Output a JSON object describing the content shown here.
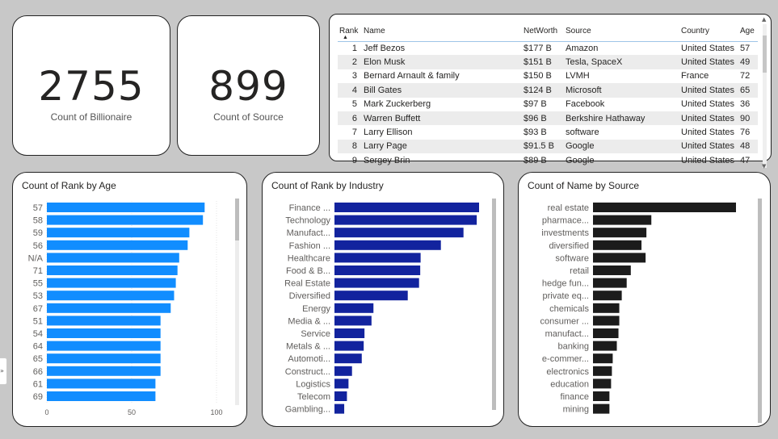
{
  "kpi1": {
    "value": "2755",
    "label": "Count of Billionaire"
  },
  "kpi2": {
    "value": "899",
    "label": "Count of Source"
  },
  "table": {
    "columns": [
      "Rank",
      "Name",
      "NetWorth",
      "Source",
      "Country",
      "Age"
    ],
    "rows": [
      [
        "1",
        "Jeff Bezos",
        "$177 B",
        "Amazon",
        "United States",
        "57"
      ],
      [
        "2",
        "Elon Musk",
        "$151 B",
        "Tesla, SpaceX",
        "United States",
        "49"
      ],
      [
        "3",
        "Bernard Arnault & family",
        "$150 B",
        "LVMH",
        "France",
        "72"
      ],
      [
        "4",
        "Bill Gates",
        "$124 B",
        "Microsoft",
        "United States",
        "65"
      ],
      [
        "5",
        "Mark Zuckerberg",
        "$97 B",
        "Facebook",
        "United States",
        "36"
      ],
      [
        "6",
        "Warren Buffett",
        "$96 B",
        "Berkshire Hathaway",
        "United States",
        "90"
      ],
      [
        "7",
        "Larry Ellison",
        "$93 B",
        "software",
        "United States",
        "76"
      ],
      [
        "8",
        "Larry Page",
        "$91.5 B",
        "Google",
        "United States",
        "48"
      ],
      [
        "9",
        "Sergey Brin",
        "$89 B",
        "Google",
        "United States",
        "47"
      ]
    ]
  },
  "chart_data": [
    {
      "type": "bar",
      "orientation": "horizontal",
      "title": "Count of Rank by Age",
      "categories": [
        "57",
        "58",
        "59",
        "56",
        "N/A",
        "71",
        "55",
        "53",
        "67",
        "51",
        "54",
        "64",
        "65",
        "66",
        "61",
        "69"
      ],
      "values": [
        93,
        92,
        84,
        83,
        78,
        77,
        76,
        75,
        73,
        67,
        67,
        67,
        67,
        67,
        64,
        64
      ],
      "xlim": [
        0,
        100
      ],
      "xticks": [
        "0",
        "50",
        "100"
      ],
      "color": "#118dff"
    },
    {
      "type": "bar",
      "orientation": "horizontal",
      "title": "Count of Rank by Industry",
      "categories": [
        "Finance ...",
        "Technology",
        "Manufact...",
        "Fashion ...",
        "Healthcare",
        "Food & B...",
        "Real Estate",
        "Diversified",
        "Energy",
        "Media & ...",
        "Service",
        "Metals & ...",
        "Automoti...",
        "Construct...",
        "Logistics",
        "Telecom",
        "Gambling..."
      ],
      "values": [
        371,
        365,
        331,
        273,
        221,
        220,
        217,
        188,
        100,
        95,
        77,
        75,
        70,
        45,
        36,
        32,
        25
      ],
      "color": "#12239e"
    },
    {
      "type": "bar",
      "orientation": "horizontal",
      "title": "Count of Name by Source",
      "categories": [
        "real estate",
        "pharmace...",
        "investments",
        "diversified",
        "software",
        "retail",
        "hedge fun...",
        "private eq...",
        "chemicals",
        "consumer ...",
        "manufact...",
        "banking",
        "e-commer...",
        "electronics",
        "education",
        "finance",
        "mining"
      ],
      "values": [
        174,
        71,
        65,
        59,
        64,
        46,
        41,
        35,
        32,
        32,
        31,
        29,
        24,
        23,
        22,
        20,
        20
      ],
      "color": "#1c1c1c"
    }
  ]
}
